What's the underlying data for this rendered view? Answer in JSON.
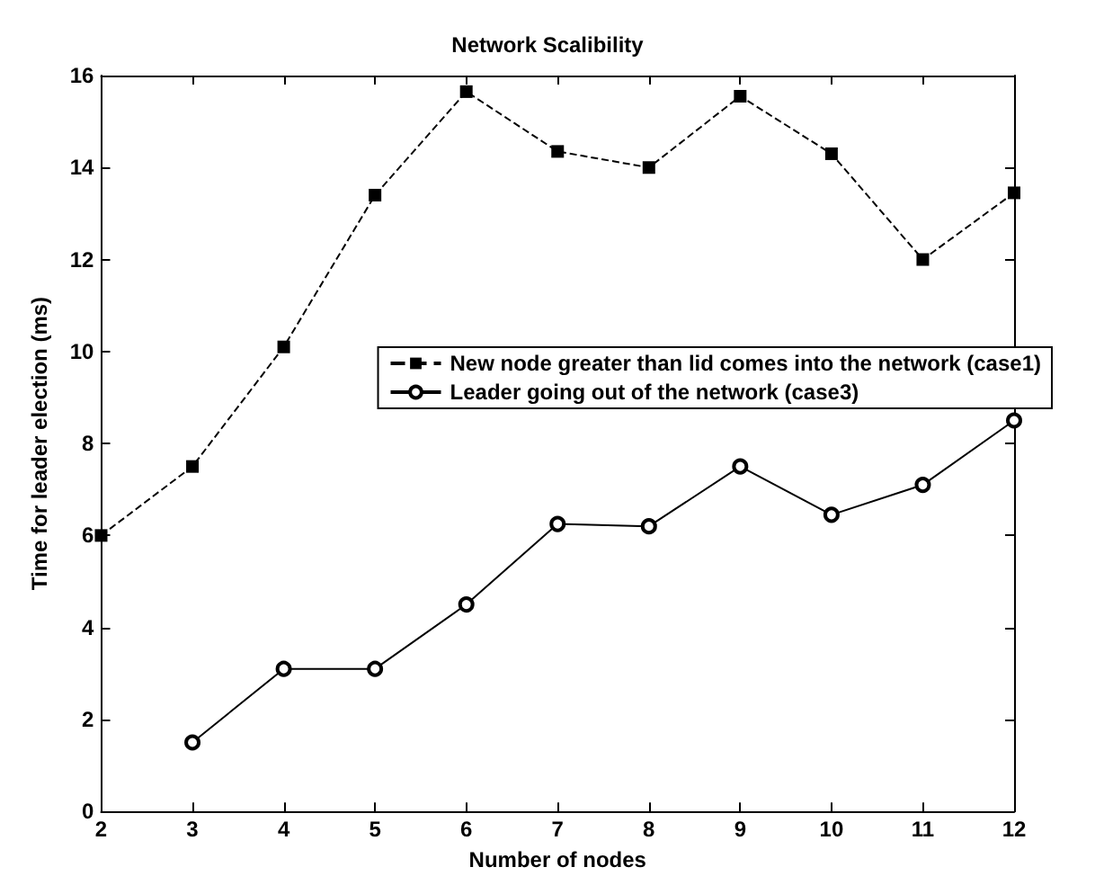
{
  "chart_data": {
    "type": "line",
    "title": "Network Scalibility",
    "xlabel": "Number of nodes",
    "ylabel": "Time for leader election (ms)",
    "x": [
      2,
      3,
      4,
      5,
      6,
      7,
      8,
      9,
      10,
      11,
      12
    ],
    "series": [
      {
        "name": "New node greater than lid comes into the network (case1)",
        "color": "#000000",
        "marker": "square",
        "line_style": "dashed",
        "values": [
          6.0,
          7.5,
          10.1,
          13.4,
          15.65,
          14.35,
          14.0,
          15.55,
          14.3,
          12.0,
          13.45
        ]
      },
      {
        "name": "Leader going out of the network (case3)",
        "color": "#000000",
        "marker": "circle",
        "line_style": "solid",
        "values": [
          null,
          1.5,
          3.1,
          3.1,
          4.5,
          6.25,
          6.2,
          7.5,
          6.45,
          7.1,
          8.5
        ]
      }
    ],
    "xlim": [
      2,
      12
    ],
    "xticks": [
      2,
      3,
      4,
      5,
      6,
      7,
      8,
      9,
      10,
      11,
      12
    ],
    "ylim": [
      0,
      16
    ],
    "yticks": [
      0,
      2,
      4,
      6,
      8,
      10,
      12,
      14,
      16
    ],
    "grid": false,
    "legend": "right"
  }
}
